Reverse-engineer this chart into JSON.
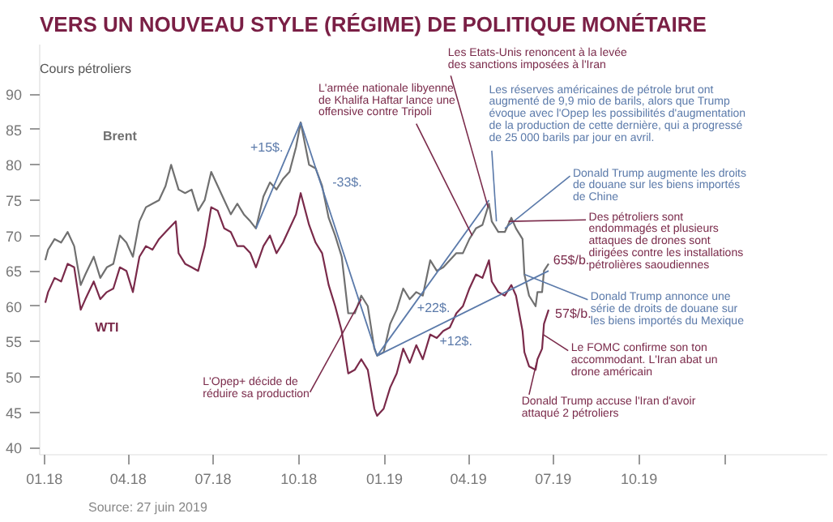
{
  "chart_data": {
    "type": "line",
    "title": "VERS UN NOUVEAU STYLE (RÉGIME) DE POLITIQUE MONÉTAIRE",
    "ylabel": "Cours pétroliers",
    "grid": false,
    "marker": "none",
    "line_style": "solid",
    "xlim": [
      "2017-12-27",
      "2020-04-20"
    ],
    "ylim": [
      39,
      97
    ],
    "yticks": [
      40,
      45,
      50,
      55,
      60,
      65,
      70,
      75,
      80,
      85,
      90
    ],
    "xticks": [
      {
        "value": "2018-01-01",
        "label": "01.18"
      },
      {
        "value": "2018-04-01",
        "label": "04.18"
      },
      {
        "value": "2018-07-01",
        "label": "07.18"
      },
      {
        "value": "2018-10-01",
        "label": "10.18"
      },
      {
        "value": "2019-01-01",
        "label": "01.19"
      },
      {
        "value": "2019-04-01",
        "label": "04.19"
      },
      {
        "value": "2019-07-01",
        "label": "07.19"
      },
      {
        "value": "2019-10-01",
        "label": "10.19"
      },
      {
        "value": "2020-01-01",
        "label": null
      }
    ],
    "series": [
      {
        "name": "Brent",
        "color": "#707070",
        "x": [
          "2018-01-02",
          "2018-01-05",
          "2018-01-12",
          "2018-01-19",
          "2018-01-26",
          "2018-02-02",
          "2018-02-09",
          "2018-02-14",
          "2018-02-23",
          "2018-03-02",
          "2018-03-09",
          "2018-03-16",
          "2018-03-23",
          "2018-03-30",
          "2018-04-06",
          "2018-04-13",
          "2018-04-20",
          "2018-04-27",
          "2018-05-04",
          "2018-05-11",
          "2018-05-17",
          "2018-05-25",
          "2018-06-01",
          "2018-06-08",
          "2018-06-15",
          "2018-06-22",
          "2018-06-29",
          "2018-07-06",
          "2018-07-13",
          "2018-07-20",
          "2018-07-27",
          "2018-08-03",
          "2018-08-10",
          "2018-08-16",
          "2018-08-24",
          "2018-08-31",
          "2018-09-07",
          "2018-09-14",
          "2018-09-21",
          "2018-09-28",
          "2018-10-03",
          "2018-10-12",
          "2018-10-19",
          "2018-10-26",
          "2018-11-02",
          "2018-11-09",
          "2018-11-16",
          "2018-11-23",
          "2018-11-30",
          "2018-12-07",
          "2018-12-14",
          "2018-12-21",
          "2018-12-24",
          "2018-12-31",
          "2019-01-07",
          "2019-01-14",
          "2019-01-21",
          "2019-01-28",
          "2019-02-04",
          "2019-02-11",
          "2019-02-19",
          "2019-02-26",
          "2019-03-05",
          "2019-03-12",
          "2019-03-19",
          "2019-03-26",
          "2019-04-02",
          "2019-04-09",
          "2019-04-16",
          "2019-04-23",
          "2019-04-26",
          "2019-05-03",
          "2019-05-10",
          "2019-05-17",
          "2019-05-22",
          "2019-05-29",
          "2019-05-31",
          "2019-06-05",
          "2019-06-12",
          "2019-06-14",
          "2019-06-19",
          "2019-06-21",
          "2019-06-26"
        ],
        "values": [
          66.5,
          68,
          69.5,
          69,
          70.5,
          68.5,
          63,
          64.5,
          67,
          64,
          65.5,
          66,
          70,
          69,
          67,
          72,
          74,
          74.5,
          75,
          77,
          80,
          76.5,
          76,
          76.5,
          73.5,
          75,
          79,
          77,
          75,
          73,
          74.5,
          73,
          72,
          71,
          75.5,
          77.5,
          76.5,
          78,
          79,
          82.5,
          86,
          80,
          79.5,
          77,
          72.5,
          70,
          67,
          59,
          59,
          61.5,
          60,
          54,
          53,
          53.5,
          57.5,
          59.5,
          62.5,
          61,
          62,
          61.5,
          66.5,
          65,
          65.5,
          66.5,
          67.5,
          67.5,
          69.5,
          71,
          71.5,
          74.5,
          72,
          70.5,
          70.5,
          72.5,
          71,
          69.5,
          64.5,
          61.5,
          60,
          62,
          62,
          65,
          66
        ]
      },
      {
        "name": "WTI",
        "color": "#7a2a4a",
        "x": [
          "2018-01-02",
          "2018-01-05",
          "2018-01-12",
          "2018-01-19",
          "2018-01-26",
          "2018-02-02",
          "2018-02-09",
          "2018-02-14",
          "2018-02-23",
          "2018-03-02",
          "2018-03-09",
          "2018-03-16",
          "2018-03-23",
          "2018-03-30",
          "2018-04-06",
          "2018-04-13",
          "2018-04-20",
          "2018-04-27",
          "2018-05-04",
          "2018-05-11",
          "2018-05-22",
          "2018-05-25",
          "2018-06-01",
          "2018-06-08",
          "2018-06-15",
          "2018-06-22",
          "2018-06-29",
          "2018-07-06",
          "2018-07-13",
          "2018-07-20",
          "2018-07-27",
          "2018-08-03",
          "2018-08-10",
          "2018-08-16",
          "2018-08-24",
          "2018-08-31",
          "2018-09-07",
          "2018-09-14",
          "2018-09-21",
          "2018-09-28",
          "2018-10-03",
          "2018-10-12",
          "2018-10-19",
          "2018-10-26",
          "2018-11-02",
          "2018-11-09",
          "2018-11-16",
          "2018-11-23",
          "2018-11-30",
          "2018-12-07",
          "2018-12-14",
          "2018-12-21",
          "2018-12-24",
          "2018-12-31",
          "2019-01-07",
          "2019-01-14",
          "2019-01-21",
          "2019-01-28",
          "2019-02-04",
          "2019-02-11",
          "2019-02-19",
          "2019-02-26",
          "2019-03-05",
          "2019-03-12",
          "2019-03-19",
          "2019-03-26",
          "2019-04-02",
          "2019-04-09",
          "2019-04-16",
          "2019-04-23",
          "2019-04-26",
          "2019-05-03",
          "2019-05-10",
          "2019-05-17",
          "2019-05-22",
          "2019-05-29",
          "2019-05-31",
          "2019-06-05",
          "2019-06-12",
          "2019-06-14",
          "2019-06-19",
          "2019-06-21",
          "2019-06-26"
        ],
        "values": [
          60.5,
          62,
          64,
          63.5,
          66,
          65.5,
          59.5,
          61,
          63.5,
          61,
          62,
          62.5,
          65.5,
          65,
          62,
          67,
          68.5,
          68,
          69.5,
          70.5,
          72,
          67.5,
          66,
          65.5,
          65,
          68.5,
          74,
          73.5,
          71,
          70.5,
          68.5,
          68.5,
          67.5,
          65.5,
          68.5,
          70,
          67.5,
          69,
          71,
          73,
          76,
          71.5,
          69,
          67.5,
          63,
          60,
          56.5,
          50.5,
          51,
          52.5,
          51,
          45.5,
          44.5,
          45.5,
          48.5,
          50.5,
          54,
          52,
          54.5,
          52.5,
          56,
          55.5,
          56.5,
          57,
          59,
          60,
          62.5,
          64.5,
          64,
          66.5,
          63.5,
          62,
          61.5,
          63,
          61.5,
          56.5,
          53.5,
          51.5,
          51,
          52.5,
          54,
          57.5,
          59.5
        ]
      },
      {
        "color": "#5b7aaa",
        "x": [
          "2018-08-16",
          "2018-10-03"
        ],
        "values": [
          71,
          86
        ]
      },
      {
        "color": "#5b7aaa",
        "x": [
          "2018-10-03",
          "2018-12-24"
        ],
        "values": [
          86,
          53
        ]
      },
      {
        "color": "#5b7aaa",
        "x": [
          "2018-12-24",
          "2019-04-23"
        ],
        "values": [
          53,
          75
        ]
      },
      {
        "color": "#5b7aaa",
        "x": [
          "2018-12-24",
          "2019-06-26"
        ],
        "values": [
          53,
          65
        ]
      }
    ],
    "annotations": [
      {
        "text": "L'armée nationale libyenne\nde Khalifa Haftar lance une\noffensive contre Tripoli",
        "x": "2019-04-05",
        "y": 70
      },
      {
        "text": "Les Etats-Unis renoncent à la levée\ndes sanctions imposées à l'Iran",
        "x": "2019-04-22",
        "y": 74
      },
      {
        "text": "Les réserves américaines de pétrole brut ont\naugmenté de 9,9 mio de barils, alors que Trump\névoque avec l'Opep les possibilités d'augmentation\nde la production de cette dernière, qui a progressé\nde 25 000 barils par jour en avril.",
        "x": "2019-05-01",
        "y": 72
      },
      {
        "text": "Donald Trump augmente les droits\nde douane sur les biens importés\nde Chine",
        "x": "2019-05-10",
        "y": 71
      },
      {
        "text": "Des pétroliers sont\nendommagés et plusieurs\nattaques de drones sont\ndirigées contre les installations\npétrolières saoudiennes",
        "x": "2019-05-14",
        "y": 72
      },
      {
        "text": "Donald Trump annonce une\nsérie de droits de douane sur\nles biens importés du Mexique",
        "x": "2019-05-31",
        "y": 64.5
      },
      {
        "text": "Le FOMC confirme son ton\naccommodant. L'Iran abat un\ndrone américain",
        "x": "2019-06-20",
        "y": 56
      },
      {
        "text": "Donald Trump accuse l'Iran d'avoir\nattaqué 2 pétroliers",
        "x": "2019-06-13",
        "y": 52
      },
      {
        "text": "L'Opep+ décide de\nréduire sa production",
        "x": "2018-12-07",
        "y": 61
      },
      "+15$.",
      "-33$.",
      "+22$.",
      "+12$.",
      "65$/b.",
      "57$/b.",
      "Source: 27 juin 2019"
    ]
  }
}
